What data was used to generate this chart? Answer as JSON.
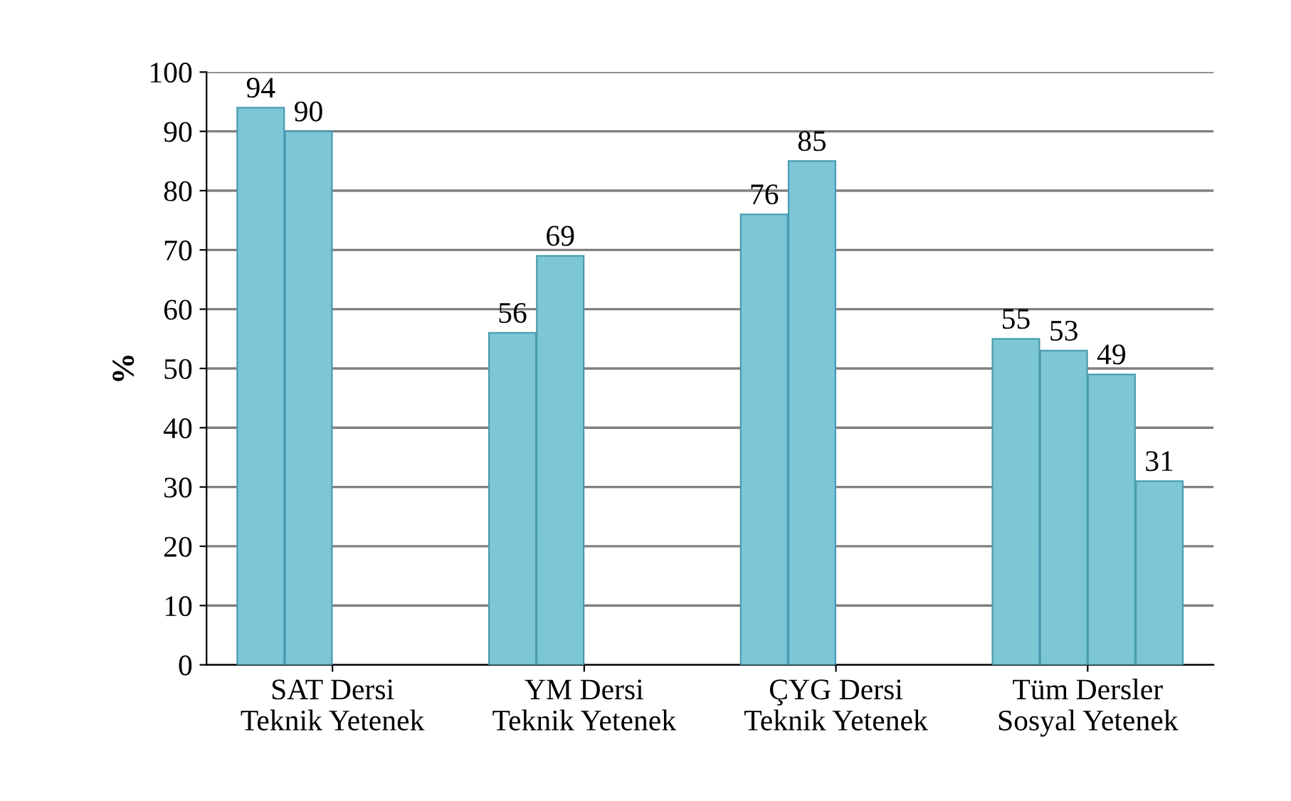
{
  "chart_data": {
    "type": "bar",
    "ylabel": "%",
    "categories": [
      "SAT Dersi\nTeknik Yetenek",
      "YM Dersi\nTeknik Yetenek",
      "ÇYG Dersi\nTeknik Yetenek",
      "Tüm Dersler\nSosyal Yetenek"
    ],
    "series": [
      {
        "color": "#7cc6d6",
        "values": [
          94,
          56,
          76,
          55
        ]
      },
      {
        "color": "#7cc6d6",
        "values": [
          90,
          69,
          85,
          53
        ]
      },
      {
        "color": "#7cc6d6",
        "values": [
          null,
          null,
          null,
          49
        ]
      },
      {
        "color": "#7cc6d6",
        "values": [
          null,
          null,
          null,
          31
        ]
      }
    ],
    "ylim": [
      0,
      100
    ],
    "yticks": [
      0,
      10,
      20,
      30,
      40,
      50,
      60,
      70,
      80,
      90,
      100
    ],
    "grid": "y",
    "data_labels": true,
    "legend": false
  }
}
